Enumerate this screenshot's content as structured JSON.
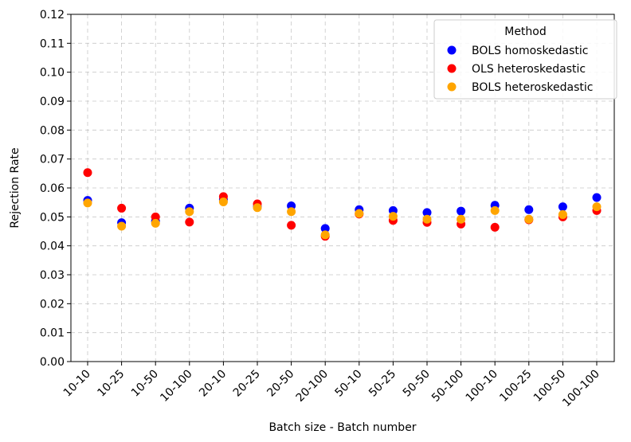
{
  "chart_data": {
    "type": "scatter",
    "title": "",
    "xlabel": "Batch size - Batch number",
    "ylabel": "Rejection Rate",
    "categories": [
      "10-10",
      "10-25",
      "10-50",
      "10-100",
      "20-10",
      "20-25",
      "20-50",
      "20-100",
      "50-10",
      "50-25",
      "50-50",
      "50-100",
      "100-10",
      "100-25",
      "100-50",
      "100-100"
    ],
    "ylim": [
      0.0,
      0.12
    ],
    "yticks": [
      "0.00",
      "0.01",
      "0.02",
      "0.03",
      "0.04",
      "0.05",
      "0.06",
      "0.07",
      "0.08",
      "0.09",
      "0.10",
      "0.11",
      "0.12"
    ],
    "grid": true,
    "legend": {
      "title": "Method",
      "position": "top-right"
    },
    "series": [
      {
        "name": "BOLS homoskedastic",
        "color": "#0000ff",
        "values": [
          0.0557,
          0.048,
          0.0485,
          0.053,
          0.056,
          0.0535,
          0.0538,
          0.046,
          0.0525,
          0.0522,
          0.0515,
          0.052,
          0.054,
          0.0525,
          0.0535,
          0.0567
        ]
      },
      {
        "name": "OLS heteroskedastic",
        "color": "#ff0000",
        "values": [
          0.0653,
          0.053,
          0.05,
          0.0482,
          0.057,
          0.0545,
          0.0471,
          0.0433,
          0.051,
          0.0488,
          0.0481,
          0.0475,
          0.0464,
          0.049,
          0.05,
          0.0522
        ]
      },
      {
        "name": "BOLS heteroskedastic",
        "color": "#ffa500",
        "values": [
          0.0548,
          0.0468,
          0.0478,
          0.0518,
          0.0552,
          0.0532,
          0.0518,
          0.0438,
          0.0512,
          0.0502,
          0.0492,
          0.0492,
          0.0522,
          0.0492,
          0.0508,
          0.0535
        ]
      }
    ]
  }
}
